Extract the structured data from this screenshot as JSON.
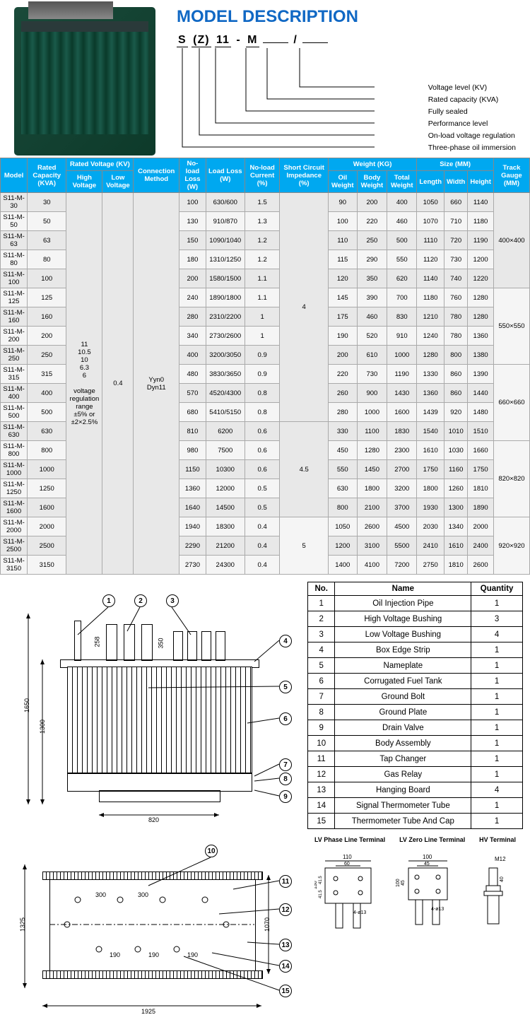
{
  "title": "MODEL DESCRIPTION",
  "model_code_parts": [
    "S",
    "(Z)",
    "11",
    "-",
    "M",
    "",
    "/",
    ""
  ],
  "legend_items": [
    "Voltage level (KV)",
    "Rated capacity (KVA)",
    "Fully sealed",
    "Performance level",
    "On-load voltage regulation",
    "Three-phase oil immersion"
  ],
  "spec_headers": {
    "model": "Model",
    "rated_capacity": "Rated Capacity (KVA)",
    "rated_voltage": "Rated Voltage (KV)",
    "high_voltage": "High Voltage",
    "low_voltage": "Low Voltage",
    "connection": "Connection Method",
    "noload_loss": "No-load Loss (W)",
    "load_loss": "Load Loss (W)",
    "noload_current": "No-load Current (%)",
    "short_circuit": "Short Circuit Impedance (%)",
    "weight": "Weight (KG)",
    "oil_weight": "Oil Weight",
    "body_weight": "Body Weight",
    "total_weight": "Total Weight",
    "size": "Size (MM)",
    "length": "Length",
    "width": "Width",
    "height": "Height",
    "track_gauge": "Track Gauge (MM)"
  },
  "high_voltage_values": "11\n10.5\n10\n6.3\n6\n\nvoltage\nregulation\nrange\n±5% or\n±2×2.5%",
  "low_voltage_value": "0.4",
  "connection_value": "Yyn0\nDyn11",
  "short_circuit_values": [
    "4",
    "4.5",
    "5"
  ],
  "track_gauge_values": [
    "400×400",
    "550×550",
    "660×660",
    "820×820",
    "920×920"
  ],
  "spec_rows": [
    {
      "model": "S11-M-30",
      "cap": "30",
      "nl": "100",
      "ll": "630/600",
      "nc": "1.5",
      "ow": "90",
      "bw": "200",
      "tw": "400",
      "l": "1050",
      "w": "660",
      "h": "1140"
    },
    {
      "model": "S11-M-50",
      "cap": "50",
      "nl": "130",
      "ll": "910/870",
      "nc": "1.3",
      "ow": "100",
      "bw": "220",
      "tw": "460",
      "l": "1070",
      "w": "710",
      "h": "1180"
    },
    {
      "model": "S11-M-63",
      "cap": "63",
      "nl": "150",
      "ll": "1090/1040",
      "nc": "1.2",
      "ow": "110",
      "bw": "250",
      "tw": "500",
      "l": "1110",
      "w": "720",
      "h": "1190"
    },
    {
      "model": "S11-M-80",
      "cap": "80",
      "nl": "180",
      "ll": "1310/1250",
      "nc": "1.2",
      "ow": "115",
      "bw": "290",
      "tw": "550",
      "l": "1120",
      "w": "730",
      "h": "1200"
    },
    {
      "model": "S11-M-100",
      "cap": "100",
      "nl": "200",
      "ll": "1580/1500",
      "nc": "1.1",
      "ow": "120",
      "bw": "350",
      "tw": "620",
      "l": "1140",
      "w": "740",
      "h": "1220"
    },
    {
      "model": "S11-M-125",
      "cap": "125",
      "nl": "240",
      "ll": "1890/1800",
      "nc": "1.1",
      "ow": "145",
      "bw": "390",
      "tw": "700",
      "l": "1180",
      "w": "760",
      "h": "1280"
    },
    {
      "model": "S11-M-160",
      "cap": "160",
      "nl": "280",
      "ll": "2310/2200",
      "nc": "1",
      "ow": "175",
      "bw": "460",
      "tw": "830",
      "l": "1210",
      "w": "780",
      "h": "1280"
    },
    {
      "model": "S11-M-200",
      "cap": "200",
      "nl": "340",
      "ll": "2730/2600",
      "nc": "1",
      "ow": "190",
      "bw": "520",
      "tw": "910",
      "l": "1240",
      "w": "780",
      "h": "1360"
    },
    {
      "model": "S11-M-250",
      "cap": "250",
      "nl": "400",
      "ll": "3200/3050",
      "nc": "0.9",
      "ow": "200",
      "bw": "610",
      "tw": "1000",
      "l": "1280",
      "w": "800",
      "h": "1380"
    },
    {
      "model": "S11-M-315",
      "cap": "315",
      "nl": "480",
      "ll": "3830/3650",
      "nc": "0.9",
      "ow": "220",
      "bw": "730",
      "tw": "1190",
      "l": "1330",
      "w": "860",
      "h": "1390"
    },
    {
      "model": "S11-M-400",
      "cap": "400",
      "nl": "570",
      "ll": "4520/4300",
      "nc": "0.8",
      "ow": "260",
      "bw": "900",
      "tw": "1430",
      "l": "1360",
      "w": "860",
      "h": "1440"
    },
    {
      "model": "S11-M-500",
      "cap": "500",
      "nl": "680",
      "ll": "5410/5150",
      "nc": "0.8",
      "ow": "280",
      "bw": "1000",
      "tw": "1600",
      "l": "1439",
      "w": "920",
      "h": "1480"
    },
    {
      "model": "S11-M-630",
      "cap": "630",
      "nl": "810",
      "ll": "6200",
      "nc": "0.6",
      "ow": "330",
      "bw": "1100",
      "tw": "1830",
      "l": "1540",
      "w": "1010",
      "h": "1510"
    },
    {
      "model": "S11-M-800",
      "cap": "800",
      "nl": "980",
      "ll": "7500",
      "nc": "0.6",
      "ow": "450",
      "bw": "1280",
      "tw": "2300",
      "l": "1610",
      "w": "1030",
      "h": "1660"
    },
    {
      "model": "S11-M-1000",
      "cap": "1000",
      "nl": "1150",
      "ll": "10300",
      "nc": "0.6",
      "ow": "550",
      "bw": "1450",
      "tw": "2700",
      "l": "1750",
      "w": "1160",
      "h": "1750"
    },
    {
      "model": "S11-M-1250",
      "cap": "1250",
      "nl": "1360",
      "ll": "12000",
      "nc": "0.5",
      "ow": "630",
      "bw": "1800",
      "tw": "3200",
      "l": "1800",
      "w": "1260",
      "h": "1810"
    },
    {
      "model": "S11-M-1600",
      "cap": "1600",
      "nl": "1640",
      "ll": "14500",
      "nc": "0.5",
      "ow": "800",
      "bw": "2100",
      "tw": "3700",
      "l": "1930",
      "w": "1300",
      "h": "1890"
    },
    {
      "model": "S11-M-2000",
      "cap": "2000",
      "nl": "1940",
      "ll": "18300",
      "nc": "0.4",
      "ow": "1050",
      "bw": "2600",
      "tw": "4500",
      "l": "2030",
      "w": "1340",
      "h": "2000"
    },
    {
      "model": "S11-M-2500",
      "cap": "2500",
      "nl": "2290",
      "ll": "21200",
      "nc": "0.4",
      "ow": "1200",
      "bw": "3100",
      "tw": "5500",
      "l": "2410",
      "w": "1610",
      "h": "2400"
    },
    {
      "model": "S11-M-3150",
      "cap": "3150",
      "nl": "2730",
      "ll": "24300",
      "nc": "0.4",
      "ow": "1400",
      "bw": "4100",
      "tw": "7200",
      "l": "2750",
      "w": "1810",
      "h": "2600"
    }
  ],
  "parts_headers": {
    "no": "No.",
    "name": "Name",
    "qty": "Quantity"
  },
  "parts": [
    {
      "no": "1",
      "name": "Oil Injection Pipe",
      "qty": "1"
    },
    {
      "no": "2",
      "name": "High Voltage Bushing",
      "qty": "3"
    },
    {
      "no": "3",
      "name": "Low Voltage Bushing",
      "qty": "4"
    },
    {
      "no": "4",
      "name": "Box Edge Strip",
      "qty": "1"
    },
    {
      "no": "5",
      "name": "Nameplate",
      "qty": "1"
    },
    {
      "no": "6",
      "name": "Corrugated Fuel Tank",
      "qty": "1"
    },
    {
      "no": "7",
      "name": "Ground Bolt",
      "qty": "1"
    },
    {
      "no": "8",
      "name": "Ground Plate",
      "qty": "1"
    },
    {
      "no": "9",
      "name": "Drain Valve",
      "qty": "1"
    },
    {
      "no": "10",
      "name": "Body Assembly",
      "qty": "1"
    },
    {
      "no": "11",
      "name": "Tap Changer",
      "qty": "1"
    },
    {
      "no": "12",
      "name": "Gas Relay",
      "qty": "1"
    },
    {
      "no": "13",
      "name": "Hanging Board",
      "qty": "4"
    },
    {
      "no": "14",
      "name": "Signal Thermometer Tube",
      "qty": "1"
    },
    {
      "no": "15",
      "name": "Thermometer Tube And Cap",
      "qty": "1"
    }
  ],
  "terminal_labels": [
    "LV Phase Line Terminal",
    "LV Zero Line Terminal",
    "HV Terminal"
  ],
  "dimensions": {
    "side_h1": "1650",
    "side_h2": "1300",
    "side_w": "820",
    "top_h": "1325",
    "top_w": "1925",
    "top_inner": "1070",
    "top_300a": "300",
    "top_300b": "300",
    "top_190a": "190",
    "top_190b": "190",
    "top_190c": "190",
    "lv_phase_110": "110",
    "lv_phase_60": "60",
    "lv_phase_130": "130",
    "lv_phase_415a": "41.5",
    "lv_phase_415b": "41.5",
    "lv_phase_hole": "4-ø13",
    "lv_zero_100": "100",
    "lv_zero_45": "45",
    "lv_zero_h45": "45",
    "lv_zero_h100": "100",
    "lv_zero_hole": "4-ø13",
    "hv_m12": "M12",
    "hv_40": "40",
    "bush_258": "258",
    "bush_350": "350"
  }
}
